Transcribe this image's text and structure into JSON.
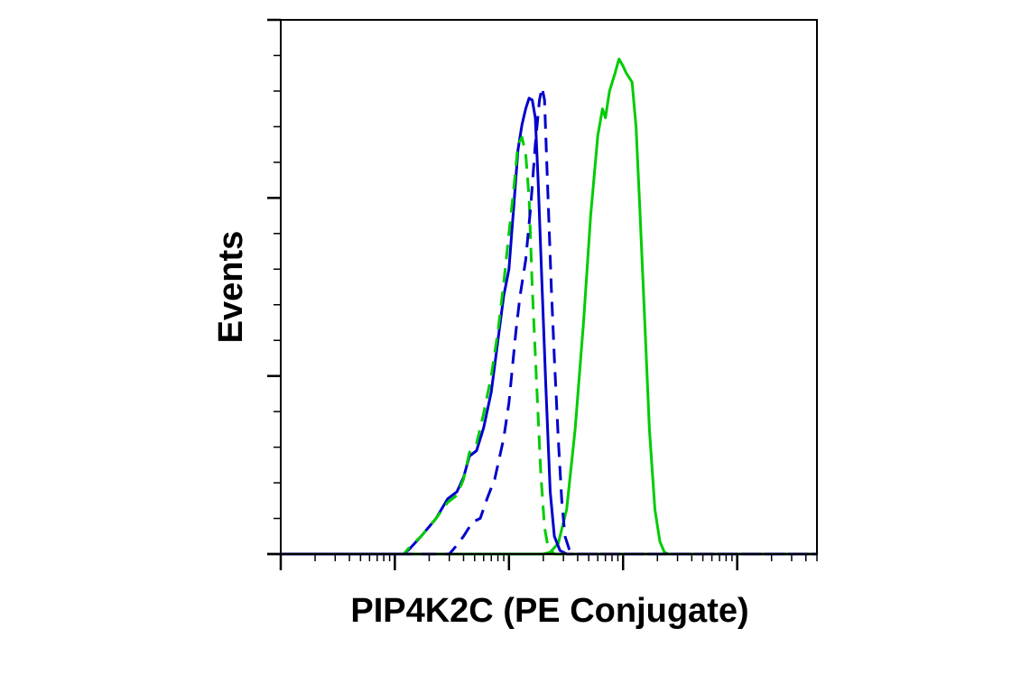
{
  "chart_data": {
    "type": "line",
    "title": "",
    "xlabel": "PIP4K2C (PE Conjugate)",
    "ylabel": "Events",
    "x_scale": "log",
    "xlim": [
      10,
      500000
    ],
    "ylim": [
      0,
      3
    ],
    "grid": false,
    "legend": "none",
    "x_tick_labels": [],
    "y_tick_labels": [],
    "series": [
      {
        "color": "#00cc00",
        "dash": "solid",
        "points": [
          [
            10,
            0
          ],
          [
            2000,
            0
          ],
          [
            2300,
            0.01
          ],
          [
            2700,
            0.06
          ],
          [
            3200,
            0.25
          ],
          [
            3800,
            0.7
          ],
          [
            4500,
            1.3
          ],
          [
            5200,
            1.9
          ],
          [
            6000,
            2.35
          ],
          [
            6600,
            2.5
          ],
          [
            7000,
            2.45
          ],
          [
            7600,
            2.6
          ],
          [
            8500,
            2.7
          ],
          [
            9200,
            2.78
          ],
          [
            10000,
            2.74
          ],
          [
            10700,
            2.7
          ],
          [
            12000,
            2.65
          ],
          [
            13000,
            2.4
          ],
          [
            14000,
            1.95
          ],
          [
            15500,
            1.3
          ],
          [
            17000,
            0.7
          ],
          [
            19000,
            0.25
          ],
          [
            21000,
            0.07
          ],
          [
            23000,
            0.01
          ],
          [
            25000,
            0
          ],
          [
            500000,
            0
          ]
        ]
      },
      {
        "color": "#0000cc",
        "dash": "solid",
        "points": [
          [
            10,
            0
          ],
          [
            120,
            0
          ],
          [
            135,
            0.03
          ],
          [
            170,
            0.1
          ],
          [
            230,
            0.2
          ],
          [
            290,
            0.31
          ],
          [
            350,
            0.35
          ],
          [
            400,
            0.43
          ],
          [
            450,
            0.55
          ],
          [
            520,
            0.58
          ],
          [
            600,
            0.71
          ],
          [
            700,
            0.91
          ],
          [
            800,
            1.2
          ],
          [
            900,
            1.45
          ],
          [
            1000,
            1.6
          ],
          [
            1100,
            1.95
          ],
          [
            1200,
            2.27
          ],
          [
            1300,
            2.41
          ],
          [
            1400,
            2.5
          ],
          [
            1500,
            2.56
          ],
          [
            1600,
            2.55
          ],
          [
            1700,
            2.45
          ],
          [
            1800,
            2.1
          ],
          [
            1950,
            1.5
          ],
          [
            2100,
            0.95
          ],
          [
            2300,
            0.35
          ],
          [
            2500,
            0.1
          ],
          [
            2800,
            0.02
          ],
          [
            3200,
            0
          ],
          [
            500000,
            0
          ]
        ]
      },
      {
        "color": "#00cc00",
        "dash": "dashed",
        "points": [
          [
            10,
            0
          ],
          [
            120,
            0
          ],
          [
            135,
            0.04
          ],
          [
            170,
            0.1
          ],
          [
            230,
            0.2
          ],
          [
            290,
            0.29
          ],
          [
            350,
            0.33
          ],
          [
            400,
            0.42
          ],
          [
            450,
            0.57
          ],
          [
            520,
            0.62
          ],
          [
            600,
            0.79
          ],
          [
            700,
            1.0
          ],
          [
            800,
            1.25
          ],
          [
            900,
            1.52
          ],
          [
            1000,
            1.8
          ],
          [
            1100,
            2.05
          ],
          [
            1200,
            2.3
          ],
          [
            1300,
            2.34
          ],
          [
            1400,
            2.25
          ],
          [
            1500,
            2.0
          ],
          [
            1600,
            1.5
          ],
          [
            1750,
            0.95
          ],
          [
            1900,
            0.45
          ],
          [
            2050,
            0.15
          ],
          [
            2200,
            0.04
          ],
          [
            2500,
            0
          ],
          [
            500000,
            0
          ]
        ]
      },
      {
        "color": "#0000cc",
        "dash": "dashed",
        "points": [
          [
            10,
            0
          ],
          [
            300,
            0
          ],
          [
            350,
            0.05
          ],
          [
            400,
            0.1
          ],
          [
            480,
            0.18
          ],
          [
            560,
            0.2
          ],
          [
            650,
            0.32
          ],
          [
            750,
            0.42
          ],
          [
            900,
            0.65
          ],
          [
            1000,
            0.85
          ],
          [
            1150,
            1.25
          ],
          [
            1250,
            1.45
          ],
          [
            1400,
            1.65
          ],
          [
            1550,
            1.95
          ],
          [
            1700,
            2.3
          ],
          [
            1850,
            2.55
          ],
          [
            1950,
            2.62
          ],
          [
            2050,
            2.55
          ],
          [
            2200,
            2.0
          ],
          [
            2350,
            1.5
          ],
          [
            2500,
            1.1
          ],
          [
            2700,
            0.65
          ],
          [
            2900,
            0.3
          ],
          [
            3100,
            0.1
          ],
          [
            3400,
            0.02
          ],
          [
            3800,
            0
          ],
          [
            500000,
            0
          ]
        ]
      }
    ]
  }
}
